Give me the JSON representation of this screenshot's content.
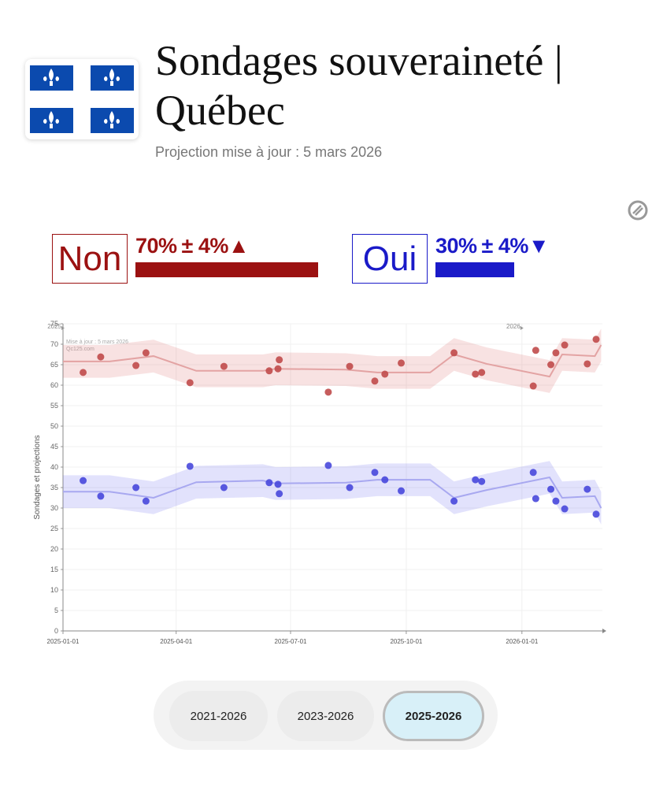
{
  "header": {
    "title": "Sondages souveraineté | Québec",
    "subtitle": "Projection mise à jour : 5 mars 2026"
  },
  "summary": [
    {
      "label": "Non",
      "value": 70,
      "value_label": "70%",
      "margin": "± 4%",
      "trend": "▲",
      "color": "#9b1111"
    },
    {
      "label": "Oui",
      "value": 30,
      "value_label": "30%",
      "margin": "± 4%",
      "trend": "▼",
      "color": "#1a1ac8"
    }
  ],
  "chart_data": {
    "type": "scatter",
    "y_label": "Sondages et projections",
    "annotations": [
      {
        "text": "2025",
        "x": "2025-01-01"
      },
      {
        "text": "2026",
        "x": "2026-01-01"
      }
    ],
    "watermark": [
      "Mise à jour : 5 mars 2026",
      "Qc125.com"
    ],
    "xlim": [
      "2025-01-01",
      "2026-03-06"
    ],
    "xticks": [
      "2025-01-01",
      "2025-04-01",
      "2025-07-01",
      "2025-10-01",
      "2026-01-01"
    ],
    "ylim": [
      0,
      75
    ],
    "yticks": [
      0,
      5,
      10,
      15,
      20,
      25,
      30,
      35,
      40,
      45,
      50,
      55,
      60,
      65,
      70,
      75
    ],
    "grid": true,
    "x": [
      "2025-01-17",
      "2025-01-31",
      "2025-02-28",
      "2025-03-08",
      "2025-04-12",
      "2025-05-09",
      "2025-06-14",
      "2025-06-21",
      "2025-06-22",
      "2025-07-31",
      "2025-08-17",
      "2025-09-06",
      "2025-09-14",
      "2025-09-27",
      "2025-11-08",
      "2025-11-25",
      "2025-11-30",
      "2026-01-10",
      "2026-01-12",
      "2026-01-24",
      "2026-01-28",
      "2026-02-04",
      "2026-02-22",
      "2026-03-01"
    ],
    "series": [
      {
        "name": "Non",
        "color": "#c04b4b",
        "line_color": "#e3a3a3",
        "band_color": "rgba(220,110,110,0.2)",
        "error": 4,
        "values": [
          63.1,
          66.9,
          64.8,
          67.9,
          60.6,
          64.6,
          63.5,
          64.0,
          66.2,
          58.3,
          64.6,
          61.0,
          62.7,
          65.4,
          67.9,
          62.7,
          63.1,
          59.8,
          68.5,
          65.0,
          67.9,
          69.8,
          65.2,
          71.2
        ],
        "projection": {
          "x": [
            "2025-01-01",
            "2025-02-07",
            "2025-03-14",
            "2025-04-17",
            "2025-06-09",
            "2025-06-19",
            "2025-08-14",
            "2025-09-08",
            "2025-10-20",
            "2025-11-08",
            "2025-12-04",
            "2026-01-23",
            "2026-02-02",
            "2026-02-28",
            "2026-03-05"
          ],
          "values": [
            65.8,
            65.8,
            67.1,
            63.5,
            63.5,
            64.0,
            63.8,
            63.1,
            63.1,
            67.5,
            65.2,
            62.1,
            67.5,
            67.1,
            69.8
          ]
        }
      },
      {
        "name": "Oui",
        "color": "#4848dc",
        "line_color": "#a8a8f0",
        "band_color": "rgba(110,110,240,0.2)",
        "error": 4,
        "values": [
          36.7,
          32.9,
          35.0,
          31.7,
          40.2,
          35.0,
          36.2,
          35.8,
          33.5,
          40.4,
          35.0,
          38.7,
          36.9,
          34.2,
          31.7,
          36.9,
          36.5,
          38.7,
          32.3,
          34.6,
          31.7,
          29.8,
          34.6,
          28.5
        ],
        "projection": {
          "x": [
            "2025-01-01",
            "2025-02-07",
            "2025-03-14",
            "2025-04-17",
            "2025-06-09",
            "2025-06-19",
            "2025-08-14",
            "2025-09-08",
            "2025-10-20",
            "2025-11-08",
            "2025-12-04",
            "2026-01-23",
            "2026-02-02",
            "2026-02-28",
            "2026-03-05"
          ],
          "values": [
            34.0,
            34.0,
            32.5,
            36.3,
            36.7,
            36.0,
            36.2,
            36.9,
            36.9,
            32.5,
            34.4,
            37.5,
            32.5,
            32.9,
            30.0
          ]
        }
      }
    ]
  },
  "buttons": {
    "items": [
      "2021-2026",
      "2023-2026",
      "2025-2026"
    ],
    "active": 2
  }
}
